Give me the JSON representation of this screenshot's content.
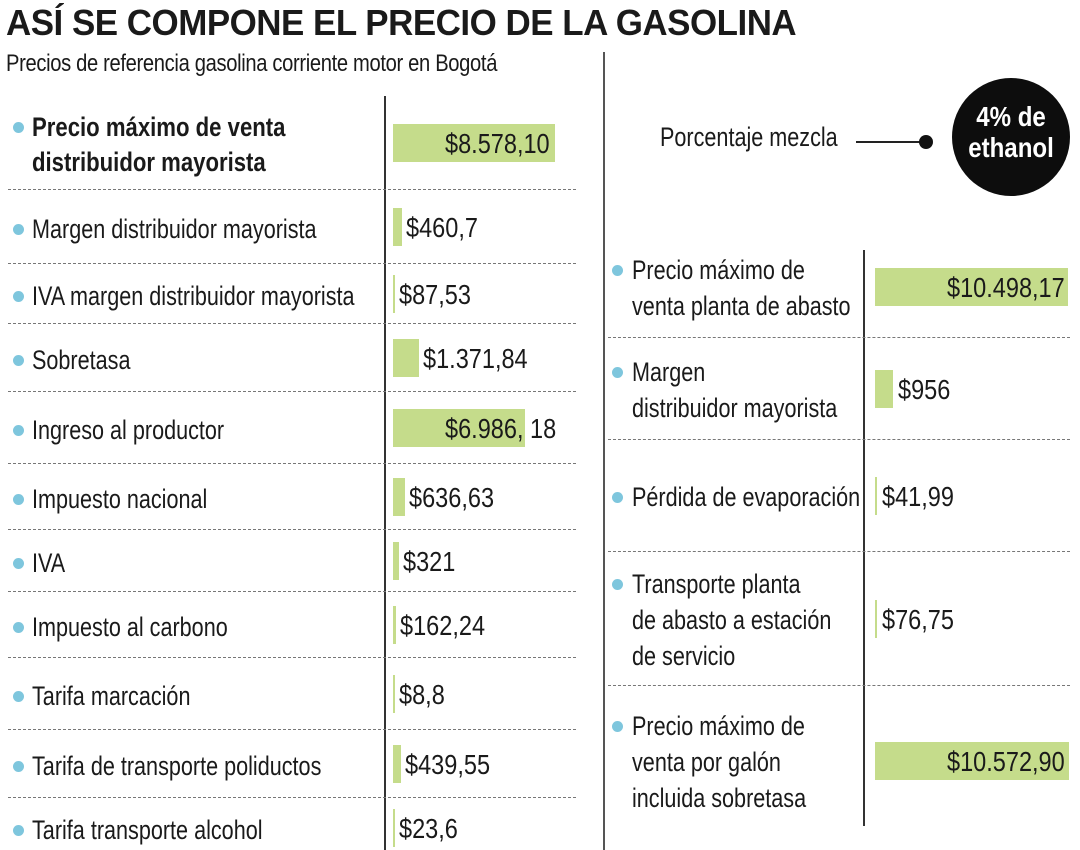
{
  "chart_data": {
    "type": "bar",
    "title": "ASÍ SE COMPONE EL PRECIO DE LA GASOLINA",
    "subtitle": "Precios de referencia gasolina corriente motor en Bogotá",
    "left_panel": {
      "items": [
        {
          "label_lines": [
            "Precio máximo de venta",
            "distribuidor mayorista"
          ],
          "value": 8578.1,
          "value_label": "$8.578,10",
          "bold": true
        },
        {
          "label_lines": [
            "Margen distribuidor mayorista"
          ],
          "value": 460.7,
          "value_label": "$460,7"
        },
        {
          "label_lines": [
            "IVA margen distribuidor mayorista"
          ],
          "value": 87.53,
          "value_label": "$87,53"
        },
        {
          "label_lines": [
            "Sobretasa"
          ],
          "value": 1371.84,
          "value_label": "$1.371,84"
        },
        {
          "label_lines": [
            "Ingreso al productor"
          ],
          "value": 6986.18,
          "value_label": "$6.986, 18"
        },
        {
          "label_lines": [
            "Impuesto nacional"
          ],
          "value": 636.63,
          "value_label": "$636,63"
        },
        {
          "label_lines": [
            "IVA"
          ],
          "value": 321,
          "value_label": "$321"
        },
        {
          "label_lines": [
            "Impuesto al carbono"
          ],
          "value": 162.24,
          "value_label": "$162,24"
        },
        {
          "label_lines": [
            "Tarifa marcación"
          ],
          "value": 8.8,
          "value_label": "$8,8"
        },
        {
          "label_lines": [
            "Tarifa de transporte  poliductos"
          ],
          "value": 439.55,
          "value_label": "$439,55"
        },
        {
          "label_lines": [
            "Tarifa transporte alcohol"
          ],
          "value": 23.6,
          "value_label": "$23,6"
        }
      ]
    },
    "right_panel": {
      "mezcla_label": "Porcentaje mezcla",
      "mezcla_badge_lines": [
        "4% de",
        "ethanol"
      ],
      "items": [
        {
          "label_lines": [
            "Precio máximo de",
            "venta planta de abasto"
          ],
          "value": 10498.17,
          "value_label": "$10.498,17"
        },
        {
          "label_lines": [
            "Margen",
            "distribuidor mayorista"
          ],
          "value": 956,
          "value_label": "$956"
        },
        {
          "label_lines": [
            "Pérdida de evaporación"
          ],
          "value": 41.99,
          "value_label": "$41,99"
        },
        {
          "label_lines": [
            "Transporte planta",
            "de abasto a estación",
            "de servicio"
          ],
          "value": 76.75,
          "value_label": "$76,75"
        },
        {
          "label_lines": [
            "Precio máximo de",
            "venta por galón",
            "incluida sobretasa"
          ],
          "value": 10572.9,
          "value_label": "$10.572,90"
        }
      ]
    }
  }
}
